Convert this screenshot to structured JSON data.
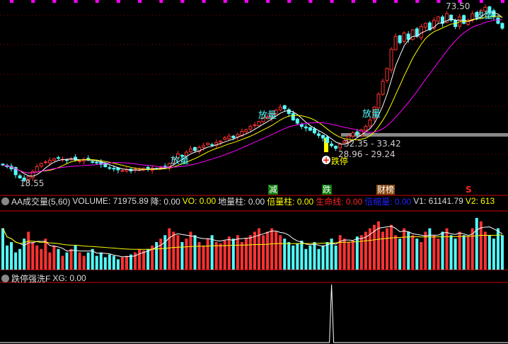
{
  "chart_data": {
    "type": "candlestick",
    "price_range": [
      18.55,
      73.5
    ],
    "closes": [
      24,
      23.5,
      22.8,
      21,
      20,
      19.2,
      20.5,
      22,
      23.5,
      24.5,
      25,
      25.5,
      26,
      26.2,
      25.8,
      25.5,
      26,
      25.6,
      25.3,
      25.8,
      25.5,
      25,
      24.8,
      24.2,
      23.5,
      23,
      22.8,
      22.5,
      22.3,
      22.6,
      22.2,
      22.7,
      22.5,
      23,
      22.8,
      23.1,
      22.9,
      23.2,
      23.5,
      24.5,
      26,
      27.5,
      27,
      28,
      29,
      28.5,
      29.5,
      30,
      30.8,
      30.2,
      31,
      31.5,
      32.5,
      33,
      32.5,
      33.5,
      34.5,
      35,
      36,
      36.5,
      37.5,
      38.5,
      39,
      40,
      41,
      42,
      41.5,
      40,
      38,
      37,
      36,
      35.5,
      34.8,
      34,
      33.2,
      32.4,
      31,
      30,
      29.2,
      30.5,
      31.5,
      33,
      34,
      33.5,
      35,
      36,
      38,
      42,
      46,
      50,
      54,
      60,
      64,
      62,
      65,
      63,
      66,
      64,
      67,
      68,
      66,
      69,
      70,
      68,
      71,
      69,
      67,
      70,
      68,
      69,
      71,
      70,
      72,
      73,
      71.5,
      70,
      68,
      66.5
    ],
    "volumes": [
      60,
      35,
      40,
      25,
      30,
      45,
      55,
      40,
      35,
      30,
      45,
      25,
      35,
      30,
      20,
      25,
      30,
      35,
      25,
      20,
      25,
      30,
      20,
      25,
      18,
      22,
      20,
      15,
      18,
      20,
      22,
      25,
      30,
      28,
      30,
      35,
      40,
      45,
      50,
      60,
      55,
      50,
      40,
      45,
      55,
      50,
      40,
      35,
      45,
      50,
      40,
      38,
      42,
      48,
      45,
      50,
      40,
      45,
      50,
      55,
      60,
      50,
      55,
      60,
      55,
      50,
      45,
      40,
      35,
      38,
      42,
      30,
      35,
      40,
      30,
      35,
      40,
      45,
      35,
      50,
      45,
      40,
      42,
      48,
      50,
      55,
      60,
      65,
      70,
      55,
      60,
      65,
      50,
      45,
      60,
      55,
      50,
      45,
      40,
      55,
      60,
      50,
      45,
      55,
      60,
      50,
      45,
      55,
      50,
      48,
      60,
      75,
      70,
      55,
      50,
      45,
      60,
      50
    ],
    "high_label": "73.50",
    "low_label": "18.55",
    "range_labels": [
      "32.35 - 33.42",
      "28.96 - 29.24"
    ],
    "signal_labels": [
      "放量",
      "放量",
      "放量",
      "放量"
    ],
    "limit_down_label": "跌停",
    "xg_spike_bar": 77
  },
  "markers": {
    "jian": "减",
    "die": "跌",
    "caibang": "财榜",
    "s": "S"
  },
  "volume_header": {
    "name": "AA成交量(5,60)",
    "volume": "VOLUME: 71975.89",
    "jiang": "降: 0.00",
    "vo": "VO: 0.00",
    "dilizhu": "地量柱: 0.00",
    "beiliangzhu": "倍量柱: 0.00",
    "shengmingxian": "生命线: 0.00",
    "beisuoliang": "倍缩量: 0.00",
    "v1": "V1: 61141.79",
    "v2": "V2: 613"
  },
  "xg_header": {
    "name": "跌停强洗F",
    "xg": "XG: 0.00"
  },
  "colors": {
    "up": "#ff3232",
    "down": "#54fcfc",
    "ma1": "#ffffff",
    "ma2": "#ffff00",
    "ma3": "#ff00ff",
    "grid": "#a00000"
  }
}
